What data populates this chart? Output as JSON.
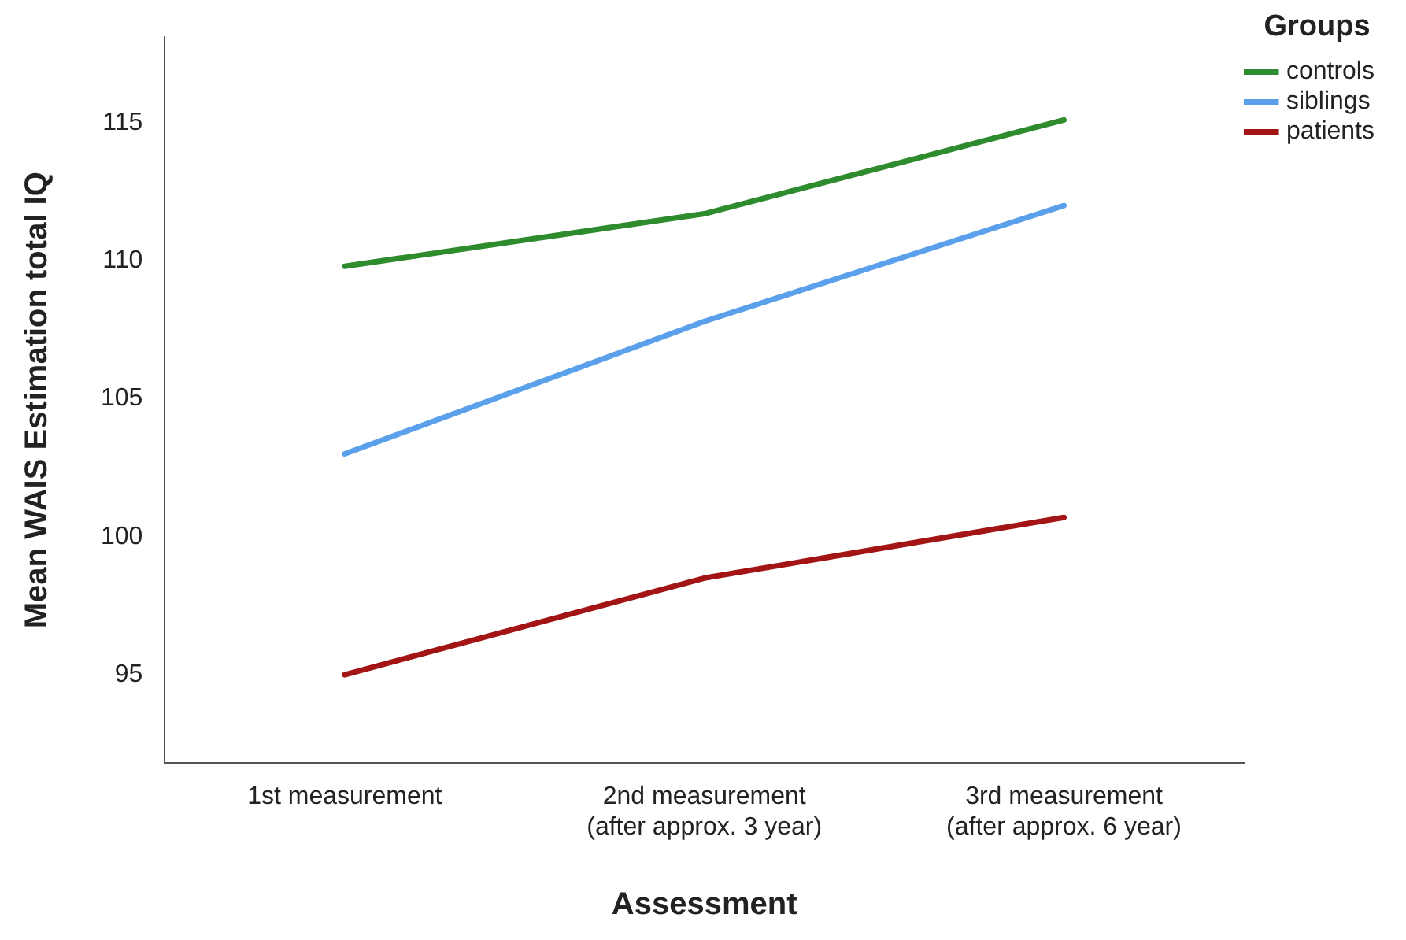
{
  "chart_data": {
    "type": "line",
    "xlabel": "Assessment",
    "ylabel": "Mean WAIS Estimation total IQ",
    "legend_title": "Groups",
    "categories": [
      "1st measurement",
      "2nd measurement\n(after approx. 3 year)",
      "3rd measurement\n(after approx. 6 year)"
    ],
    "series": [
      {
        "name": "controls",
        "color": "#2e8b2e",
        "values": [
          109.8,
          111.7,
          115.1
        ]
      },
      {
        "name": "siblings",
        "color": "#5aa0ea",
        "values": [
          103.0,
          107.8,
          112.0
        ]
      },
      {
        "name": "patients",
        "color": "#a31414",
        "values": [
          95.0,
          98.5,
          100.7
        ]
      }
    ],
    "ylim": [
      91.8,
      118.1
    ],
    "yticks": [
      95,
      100,
      105,
      110,
      115
    ],
    "grid": false,
    "legend": "top right",
    "marker": "none",
    "line_style": "solid"
  }
}
